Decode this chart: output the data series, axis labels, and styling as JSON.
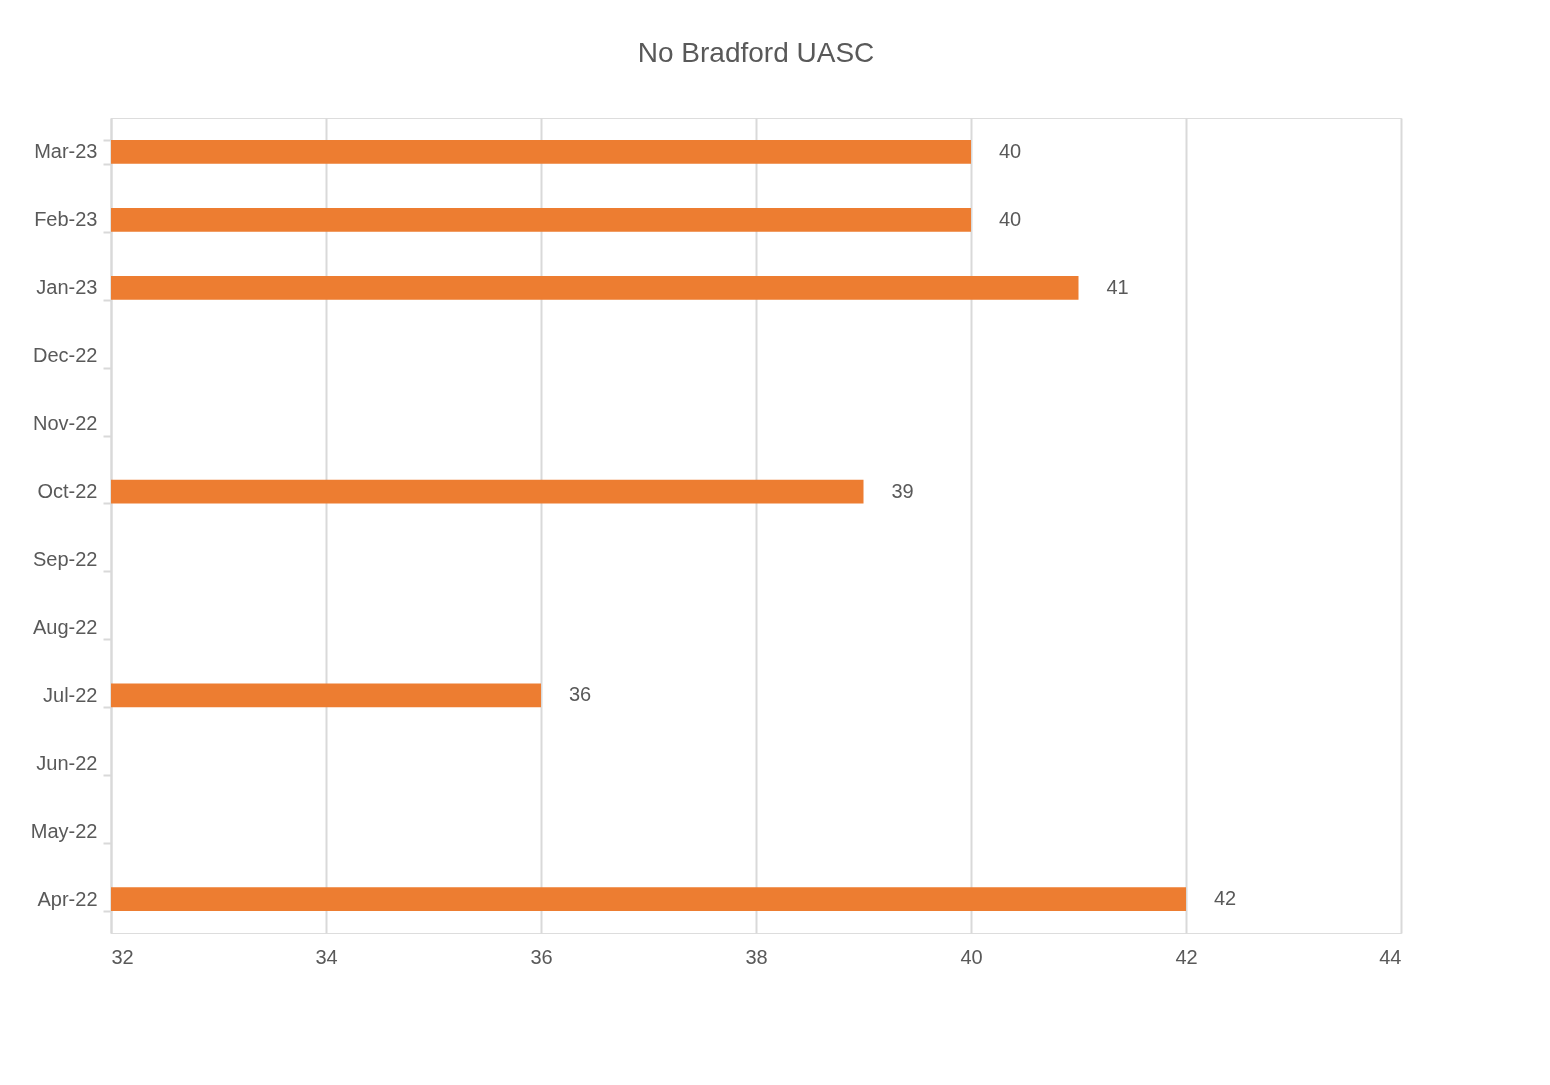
{
  "chart_data": {
    "type": "bar",
    "orientation": "horizontal",
    "title": "No Bradford UASC",
    "categories": [
      "Mar-23",
      "Feb-23",
      "Jan-23",
      "Dec-22",
      "Nov-22",
      "Oct-22",
      "Sep-22",
      "Aug-22",
      "Jul-22",
      "Jun-22",
      "May-22",
      "Apr-22"
    ],
    "values": [
      40,
      40,
      41,
      null,
      null,
      39,
      null,
      null,
      36,
      null,
      null,
      42
    ],
    "color": "#ed7d31",
    "xlim": [
      32,
      44
    ],
    "xticks": [
      32,
      34,
      36,
      38,
      40,
      42,
      44
    ],
    "grid": "x",
    "data_labels": true
  }
}
